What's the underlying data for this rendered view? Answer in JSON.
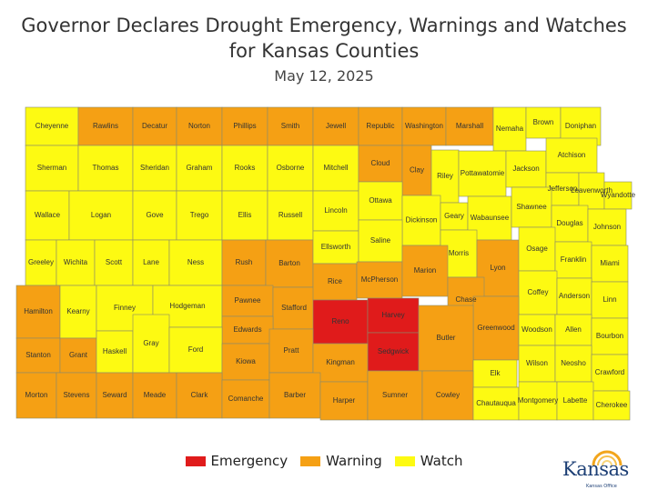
{
  "title_line1": "Governor Declares Drought Emergency, Warnings and Watches",
  "title_line2": "for Kansas Counties",
  "date": "May 12, 2025",
  "colors": {
    "emergency": "#e01b1b",
    "warning": "#f5a014",
    "watch": "#fdfa12"
  },
  "legend": [
    {
      "label": "Emergency",
      "level": "emergency"
    },
    {
      "label": "Warning",
      "level": "warning"
    },
    {
      "label": "Watch",
      "level": "watch"
    }
  ],
  "logo": {
    "text": "Kansas",
    "subtitle": "Kansas Office",
    "icon": "sun-rays-icon"
  },
  "counties": [
    {
      "name": "Cheyenne",
      "level": "watch"
    },
    {
      "name": "Rawlins",
      "level": "warning"
    },
    {
      "name": "Decatur",
      "level": "warning"
    },
    {
      "name": "Norton",
      "level": "warning"
    },
    {
      "name": "Phillips",
      "level": "warning"
    },
    {
      "name": "Smith",
      "level": "warning"
    },
    {
      "name": "Jewell",
      "level": "warning"
    },
    {
      "name": "Republic",
      "level": "warning"
    },
    {
      "name": "Washington",
      "level": "warning"
    },
    {
      "name": "Marshall",
      "level": "warning"
    },
    {
      "name": "Nemaha",
      "level": "watch"
    },
    {
      "name": "Brown",
      "level": "watch"
    },
    {
      "name": "Doniphan",
      "level": "watch"
    },
    {
      "name": "Sherman",
      "level": "watch"
    },
    {
      "name": "Thomas",
      "level": "watch"
    },
    {
      "name": "Sheridan",
      "level": "watch"
    },
    {
      "name": "Graham",
      "level": "watch"
    },
    {
      "name": "Rooks",
      "level": "watch"
    },
    {
      "name": "Osborne",
      "level": "watch"
    },
    {
      "name": "Mitchell",
      "level": "watch"
    },
    {
      "name": "Cloud",
      "level": "warning"
    },
    {
      "name": "Clay",
      "level": "warning"
    },
    {
      "name": "Riley",
      "level": "watch"
    },
    {
      "name": "Pottawatomie",
      "level": "watch"
    },
    {
      "name": "Jackson",
      "level": "watch"
    },
    {
      "name": "Atchison",
      "level": "watch"
    },
    {
      "name": "Jefferson",
      "level": "watch"
    },
    {
      "name": "Leavenworth",
      "level": "watch"
    },
    {
      "name": "Wyandotte",
      "level": "watch"
    },
    {
      "name": "Wallace",
      "level": "watch"
    },
    {
      "name": "Logan",
      "level": "watch"
    },
    {
      "name": "Gove",
      "level": "watch"
    },
    {
      "name": "Trego",
      "level": "watch"
    },
    {
      "name": "Ellis",
      "level": "watch"
    },
    {
      "name": "Russell",
      "level": "watch"
    },
    {
      "name": "Lincoln",
      "level": "watch"
    },
    {
      "name": "Ottawa",
      "level": "watch"
    },
    {
      "name": "Dickinson",
      "level": "watch"
    },
    {
      "name": "Geary",
      "level": "watch"
    },
    {
      "name": "Wabaunsee",
      "level": "watch"
    },
    {
      "name": "Shawnee",
      "level": "watch"
    },
    {
      "name": "Douglas",
      "level": "watch"
    },
    {
      "name": "Johnson",
      "level": "watch"
    },
    {
      "name": "Greeley",
      "level": "watch"
    },
    {
      "name": "Wichita",
      "level": "watch"
    },
    {
      "name": "Scott",
      "level": "watch"
    },
    {
      "name": "Lane",
      "level": "watch"
    },
    {
      "name": "Ness",
      "level": "watch"
    },
    {
      "name": "Rush",
      "level": "warning"
    },
    {
      "name": "Barton",
      "level": "warning"
    },
    {
      "name": "Ellsworth",
      "level": "watch"
    },
    {
      "name": "Saline",
      "level": "watch"
    },
    {
      "name": "Morris",
      "level": "watch"
    },
    {
      "name": "Lyon",
      "level": "warning"
    },
    {
      "name": "Osage",
      "level": "watch"
    },
    {
      "name": "Franklin",
      "level": "watch"
    },
    {
      "name": "Miami",
      "level": "watch"
    },
    {
      "name": "Hamilton",
      "level": "warning"
    },
    {
      "name": "Kearny",
      "level": "watch"
    },
    {
      "name": "Finney",
      "level": "watch"
    },
    {
      "name": "Hodgeman",
      "level": "watch"
    },
    {
      "name": "Pawnee",
      "level": "warning"
    },
    {
      "name": "Stafford",
      "level": "warning"
    },
    {
      "name": "Rice",
      "level": "warning"
    },
    {
      "name": "McPherson",
      "level": "warning"
    },
    {
      "name": "Marion",
      "level": "warning"
    },
    {
      "name": "Chase",
      "level": "warning"
    },
    {
      "name": "Coffey",
      "level": "watch"
    },
    {
      "name": "Anderson",
      "level": "watch"
    },
    {
      "name": "Linn",
      "level": "watch"
    },
    {
      "name": "Edwards",
      "level": "warning"
    },
    {
      "name": "Reno",
      "level": "emergency"
    },
    {
      "name": "Harvey",
      "level": "emergency"
    },
    {
      "name": "Sedgwick",
      "level": "emergency"
    },
    {
      "name": "Greenwood",
      "level": "warning"
    },
    {
      "name": "Woodson",
      "level": "watch"
    },
    {
      "name": "Allen",
      "level": "watch"
    },
    {
      "name": "Bourbon",
      "level": "watch"
    },
    {
      "name": "Stanton",
      "level": "warning"
    },
    {
      "name": "Grant",
      "level": "warning"
    },
    {
      "name": "Haskell",
      "level": "watch"
    },
    {
      "name": "Gray",
      "level": "watch"
    },
    {
      "name": "Ford",
      "level": "watch"
    },
    {
      "name": "Kiowa",
      "level": "warning"
    },
    {
      "name": "Pratt",
      "level": "warning"
    },
    {
      "name": "Kingman",
      "level": "warning"
    },
    {
      "name": "Butler",
      "level": "warning"
    },
    {
      "name": "Elk",
      "level": "watch"
    },
    {
      "name": "Wilson",
      "level": "watch"
    },
    {
      "name": "Neosho",
      "level": "watch"
    },
    {
      "name": "Crawford",
      "level": "watch"
    },
    {
      "name": "Morton",
      "level": "warning"
    },
    {
      "name": "Stevens",
      "level": "warning"
    },
    {
      "name": "Seward",
      "level": "warning"
    },
    {
      "name": "Meade",
      "level": "warning"
    },
    {
      "name": "Clark",
      "level": "warning"
    },
    {
      "name": "Comanche",
      "level": "warning"
    },
    {
      "name": "Barber",
      "level": "warning"
    },
    {
      "name": "Harper",
      "level": "warning"
    },
    {
      "name": "Sumner",
      "level": "warning"
    },
    {
      "name": "Cowley",
      "level": "warning"
    },
    {
      "name": "Chautauqua",
      "level": "watch"
    },
    {
      "name": "Montgomery",
      "level": "watch"
    },
    {
      "name": "Labette",
      "level": "watch"
    },
    {
      "name": "Cherokee",
      "level": "watch"
    }
  ]
}
